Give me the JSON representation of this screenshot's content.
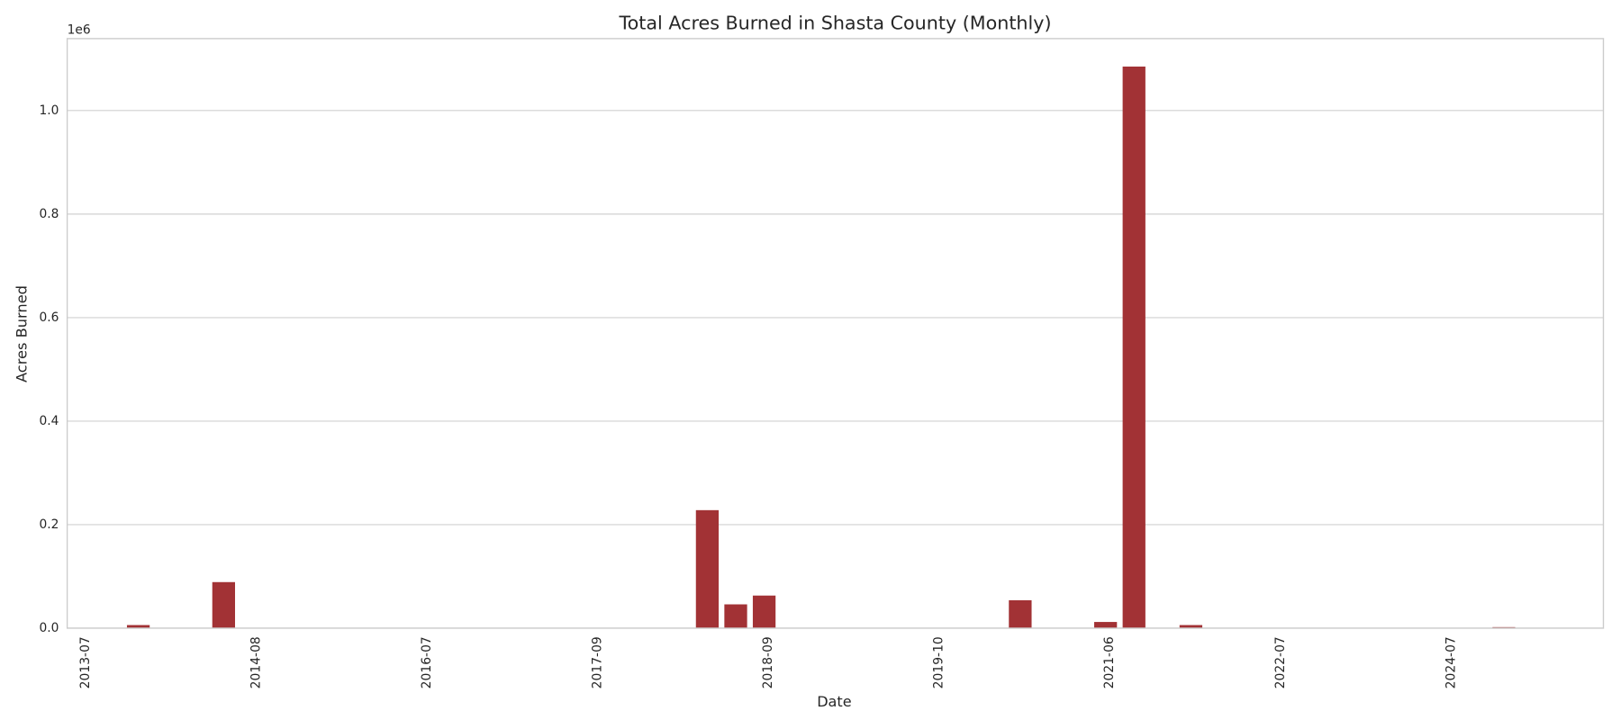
{
  "chart_data": {
    "type": "bar",
    "title": "Total Acres Burned in Shasta County (Monthly)",
    "x_label": "Date",
    "y_label": "Acres Burned",
    "y_offset_label": "1e6",
    "color": "#a23235",
    "grid": true,
    "categories": [
      "2013-07",
      null,
      null,
      null,
      null,
      null,
      "2014-08",
      null,
      null,
      null,
      null,
      null,
      "2016-07",
      null,
      null,
      null,
      null,
      null,
      "2017-09",
      null,
      null,
      null,
      null,
      null,
      "2018-09",
      null,
      null,
      null,
      null,
      null,
      "2019-10",
      null,
      null,
      null,
      null,
      null,
      "2021-06",
      null,
      null,
      null,
      null,
      null,
      "2022-07",
      null,
      null,
      null,
      null,
      null,
      "2024-07",
      null,
      null,
      null,
      null,
      null
    ],
    "values": [
      0,
      0,
      6000,
      0,
      0,
      89000,
      0,
      0,
      0,
      0,
      0,
      0,
      0,
      0,
      0,
      0,
      0,
      0,
      0,
      0,
      0,
      0,
      228000,
      46000,
      63000,
      0,
      0,
      0,
      0,
      0,
      0,
      0,
      0,
      54000,
      0,
      0,
      12000,
      1085000,
      0,
      6000,
      0,
      0,
      0,
      0,
      0,
      0,
      0,
      0,
      0,
      0,
      2000,
      0,
      0,
      0
    ],
    "ylim": [
      0,
      1139000
    ],
    "yticks": [
      {
        "value": 0,
        "label": "0.0"
      },
      {
        "value": 200000,
        "label": "0.2"
      },
      {
        "value": 400000,
        "label": "0.4"
      },
      {
        "value": 600000,
        "label": "0.6"
      },
      {
        "value": 800000,
        "label": "0.8"
      },
      {
        "value": 1000000,
        "label": "1.0"
      }
    ]
  }
}
